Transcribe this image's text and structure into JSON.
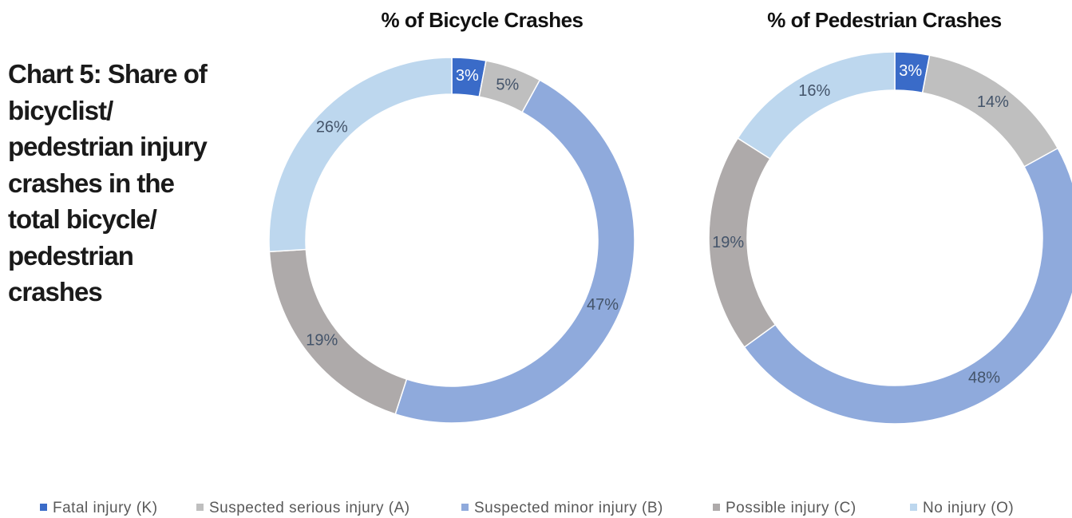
{
  "heading": "Chart 5: Share of bicyclist/ pedestrian injury crashes in the total bicycle/ pedestrian crashes",
  "chart_data": [
    {
      "type": "donut",
      "title": "% of Bicycle Crashes",
      "categories": [
        "Fatal injury (K)",
        "Suspected serious injury (A)",
        "Suspected minor injury (B)",
        "Possible injury (C)",
        "No injury (O)"
      ],
      "values": [
        3,
        5,
        47,
        19,
        26
      ],
      "value_labels": [
        "3%",
        "5%",
        "47%",
        "19%",
        "26%"
      ],
      "colors": [
        "#3a6bc8",
        "#bfbfbf",
        "#8faadc",
        "#aeaaaa",
        "#bdd7ee"
      ]
    },
    {
      "type": "donut",
      "title": "% of Pedestrian Crashes",
      "categories": [
        "Fatal injury (K)",
        "Suspected serious injury (A)",
        "Suspected minor injury (B)",
        "Possible injury (C)",
        "No injury (O)"
      ],
      "values": [
        3,
        14,
        48,
        19,
        16
      ],
      "value_labels": [
        "3%",
        "14%",
        "48%",
        "19%",
        "16%"
      ],
      "colors": [
        "#3a6bc8",
        "#bfbfbf",
        "#8faadc",
        "#aeaaaa",
        "#bdd7ee"
      ]
    }
  ]
}
